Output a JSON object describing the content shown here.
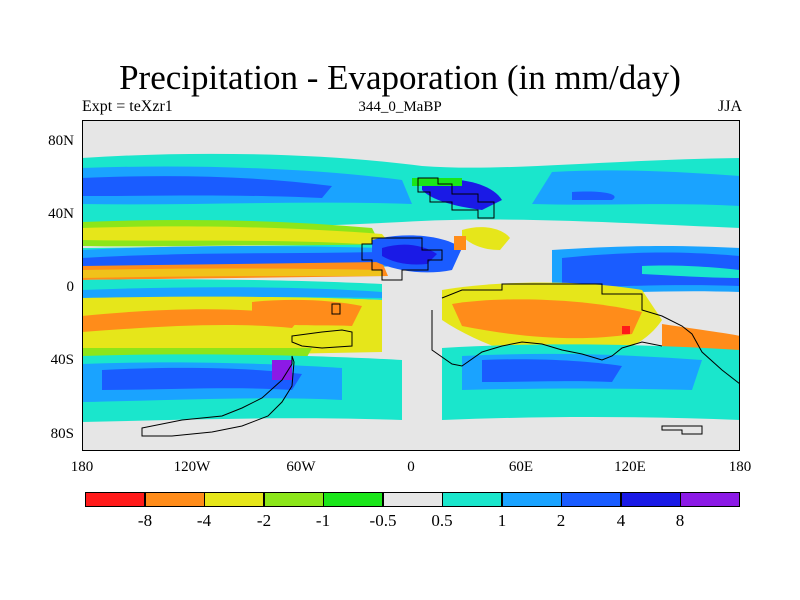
{
  "title": "Precipitation - Evaporation (in mm/day)",
  "subtitle_left": "Expt = teXzr1",
  "subtitle_center": "344_0_MaBP",
  "subtitle_right": "JJA",
  "y_ticks": [
    "80N",
    "40N",
    "0",
    "40S",
    "80S"
  ],
  "x_ticks": [
    "180",
    "120W",
    "60W",
    "0",
    "60E",
    "120E",
    "180"
  ],
  "colorbar": {
    "colors": [
      "#ff1a1a",
      "#ff8c1a",
      "#e6e61a",
      "#8ce61a",
      "#1ae61a",
      "#e6e6e6",
      "#1ae6cc",
      "#1aa3ff",
      "#1a5cff",
      "#1a1ae6",
      "#8c1ae6"
    ],
    "labels": [
      "-8",
      "-4",
      "-2",
      "-1",
      "-0.5",
      "0.5",
      "1",
      "2",
      "4",
      "8"
    ]
  },
  "map_colors": {
    "background": "#e6e6e6",
    "orange": "#ff8c1a",
    "yellow": "#e6e61a",
    "light_green": "#8ce61a",
    "green": "#1ae61a",
    "cyan": "#1ae6cc",
    "light_blue": "#1aa3ff",
    "blue": "#1a5cff",
    "dark_blue": "#1a1ae6",
    "purple": "#8c1ae6",
    "red": "#ff1a1a"
  }
}
